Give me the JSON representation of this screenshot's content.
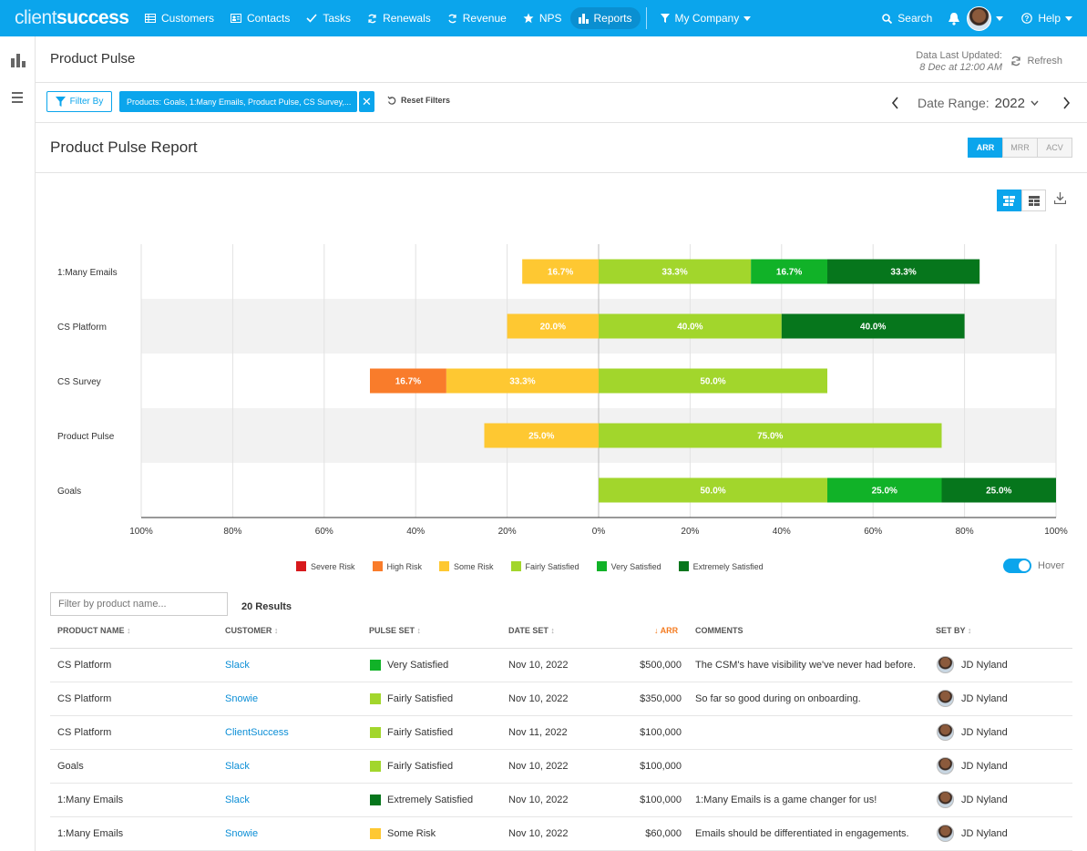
{
  "nav": {
    "logo_light": "client",
    "logo_bold": "success",
    "items": [
      {
        "label": "Customers",
        "icon": "table-icon"
      },
      {
        "label": "Contacts",
        "icon": "contact-card-icon"
      },
      {
        "label": "Tasks",
        "icon": "check-icon"
      },
      {
        "label": "Renewals",
        "icon": "renew-icon"
      },
      {
        "label": "Revenue",
        "icon": "revenue-icon"
      },
      {
        "label": "NPS",
        "icon": "star-icon"
      },
      {
        "label": "Reports",
        "icon": "bar-chart-icon",
        "active": true
      }
    ],
    "company": "My Company",
    "search": "Search",
    "help": "Help"
  },
  "page": {
    "title": "Product Pulse",
    "updated_label": "Data Last Updated:",
    "updated_time": "8 Dec at 12:00 AM",
    "refresh": "Refresh"
  },
  "filters": {
    "filter_by": "Filter By",
    "chip": "Products: Goals, 1:Many Emails, Product Pulse, CS Survey,...",
    "chip_close": "✕",
    "reset": "Reset Filters",
    "date_range_label": "Date Range:",
    "date_range_year": "2022"
  },
  "report": {
    "title": "Product Pulse Report",
    "metrics": [
      "ARR",
      "MRR",
      "ACV"
    ],
    "active_metric": "ARR",
    "hover_label": "Hover",
    "hover_on": true
  },
  "colors": {
    "severe": "#d7191c",
    "high": "#f97c2b",
    "some": "#fec832",
    "fairly": "#a2d62c",
    "very": "#11b228",
    "extremely": "#06761c"
  },
  "chart_data": {
    "type": "bar",
    "orientation": "horizontal-diverging-stacked",
    "categories": [
      "1:Many Emails",
      "CS Platform",
      "CS Survey",
      "Product Pulse",
      "Goals"
    ],
    "xlim": [
      -100,
      100
    ],
    "x_ticks": [
      "100%",
      "80%",
      "60%",
      "40%",
      "20%",
      "0%",
      "20%",
      "40%",
      "60%",
      "80%",
      "100%"
    ],
    "negative_series_order": [
      "Some Risk",
      "High Risk",
      "Severe Risk"
    ],
    "series": [
      {
        "name": "Severe Risk",
        "color": "#d7191c",
        "values": [
          0,
          0,
          0,
          0,
          0
        ]
      },
      {
        "name": "High Risk",
        "color": "#f97c2b",
        "values": [
          0,
          0,
          16.7,
          0,
          0
        ]
      },
      {
        "name": "Some Risk",
        "color": "#fec832",
        "values": [
          16.7,
          20.0,
          33.3,
          25.0,
          0
        ]
      },
      {
        "name": "Fairly Satisfied",
        "color": "#a2d62c",
        "values": [
          33.3,
          40.0,
          50.0,
          75.0,
          50.0
        ]
      },
      {
        "name": "Very Satisfied",
        "color": "#11b228",
        "values": [
          16.7,
          0,
          0,
          0,
          25.0
        ]
      },
      {
        "name": "Extremely Satisfied",
        "color": "#06761c",
        "values": [
          33.3,
          40.0,
          0,
          0,
          25.0
        ]
      }
    ],
    "grid": true,
    "legend_position": "bottom"
  },
  "table": {
    "search_placeholder": "Filter by product name...",
    "results": "20 Results",
    "columns": [
      "PRODUCT NAME",
      "CUSTOMER",
      "PULSE SET",
      "DATE SET",
      "ARR",
      "COMMENTS",
      "SET BY"
    ],
    "sorted_column": "ARR",
    "rows": [
      {
        "product": "CS Platform",
        "customer": "Slack",
        "pulse": "Very Satisfied",
        "color": "#11b228",
        "date": "Nov 10, 2022",
        "arr": "$500,000",
        "comment": "The CSM's have visibility we've never had before.",
        "set_by": "JD Nyland"
      },
      {
        "product": "CS Platform",
        "customer": "Snowie",
        "pulse": "Fairly Satisfied",
        "color": "#a2d62c",
        "date": "Nov 10, 2022",
        "arr": "$350,000",
        "comment": "So far so good during on onboarding.",
        "set_by": "JD Nyland"
      },
      {
        "product": "CS Platform",
        "customer": "ClientSuccess",
        "pulse": "Fairly Satisfied",
        "color": "#a2d62c",
        "date": "Nov 11, 2022",
        "arr": "$100,000",
        "comment": "",
        "set_by": "JD Nyland"
      },
      {
        "product": "Goals",
        "customer": "Slack",
        "pulse": "Fairly Satisfied",
        "color": "#a2d62c",
        "date": "Nov 10, 2022",
        "arr": "$100,000",
        "comment": "",
        "set_by": "JD Nyland"
      },
      {
        "product": "1:Many Emails",
        "customer": "Slack",
        "pulse": "Extremely Satisfied",
        "color": "#06761c",
        "date": "Nov 10, 2022",
        "arr": "$100,000",
        "comment": "1:Many Emails is a game changer for us!",
        "set_by": "JD Nyland"
      },
      {
        "product": "1:Many Emails",
        "customer": "Snowie",
        "pulse": "Some Risk",
        "color": "#fec832",
        "date": "Nov 10, 2022",
        "arr": "$60,000",
        "comment": "Emails should be differentiated in engagements.",
        "set_by": "JD Nyland"
      }
    ]
  }
}
